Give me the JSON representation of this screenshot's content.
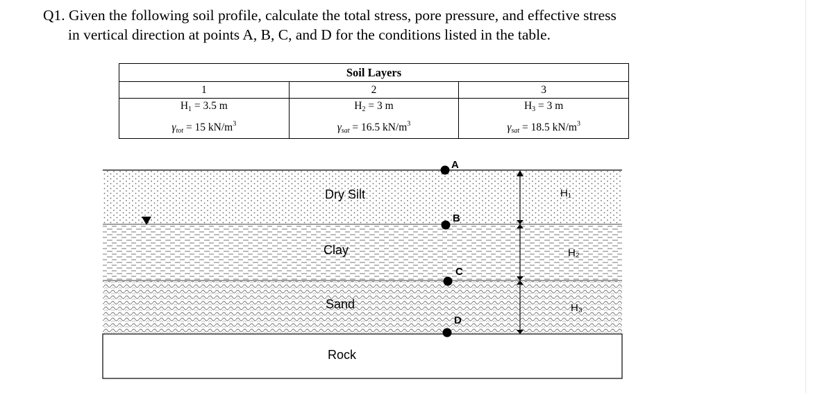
{
  "question": {
    "number": "Q1.",
    "line1": "Given the following soil profile, calculate the total stress, pore pressure, and effective stress",
    "line2": "in vertical direction at points A, B, C, and D for the conditions listed in the table."
  },
  "table": {
    "title": "Soil Layers",
    "layers": [
      {
        "number": "1",
        "h_var": "H",
        "h_sub": "1",
        "h_val": " = 3.5 m",
        "g_sub": "tot",
        "g_val": " = 15 kN/m",
        "g_exp": "3"
      },
      {
        "number": "2",
        "h_var": "H",
        "h_sub": "2",
        "h_val": " = 3 m",
        "g_sub": "sat",
        "g_val": " = 16.5 kN/m",
        "g_exp": "3"
      },
      {
        "number": "3",
        "h_var": "H",
        "h_sub": "3",
        "h_val": " = 3 m",
        "g_sub": "sat",
        "g_val": " = 18.5 kN/m",
        "g_exp": "3"
      }
    ]
  },
  "profile": {
    "layer_labels": {
      "silt": "Dry Silt",
      "clay": "Clay",
      "sand": "Sand",
      "rock": "Rock"
    },
    "points": {
      "a": "A",
      "b": "B",
      "c": "C",
      "d": "D"
    },
    "thickness_labels": {
      "h1": "H₁",
      "h2": "H₂",
      "h3": "H₃"
    }
  }
}
